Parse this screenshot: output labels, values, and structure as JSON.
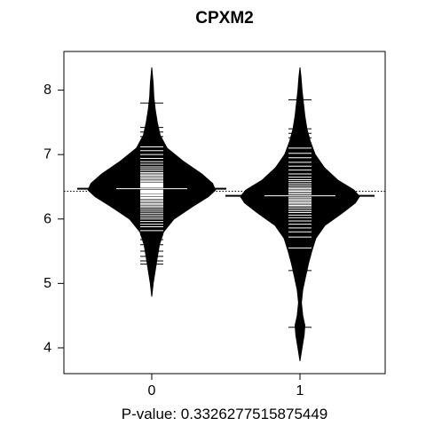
{
  "chart_data": {
    "type": "beanplot",
    "title": "CPXM2",
    "xlabel": "P-value: 0.3326277515875449",
    "ylabel": "",
    "categories": [
      "0",
      "1"
    ],
    "yticks": [
      4,
      5,
      6,
      7,
      8
    ],
    "ylim": [
      3.6,
      8.6
    ],
    "overall_mean": 6.43,
    "grid": false,
    "groups": [
      {
        "label": "0",
        "mean": 6.47,
        "ymin": 4.8,
        "ymax": 8.35,
        "density": [
          [
            4.8,
            0.0
          ],
          [
            5.0,
            0.02
          ],
          [
            5.2,
            0.05
          ],
          [
            5.4,
            0.08
          ],
          [
            5.6,
            0.11
          ],
          [
            5.8,
            0.17
          ],
          [
            6.0,
            0.32
          ],
          [
            6.2,
            0.6
          ],
          [
            6.35,
            0.82
          ],
          [
            6.45,
            0.92
          ],
          [
            6.55,
            0.88
          ],
          [
            6.7,
            0.72
          ],
          [
            6.9,
            0.45
          ],
          [
            7.1,
            0.22
          ],
          [
            7.3,
            0.12
          ],
          [
            7.5,
            0.08
          ],
          [
            7.7,
            0.05
          ],
          [
            7.9,
            0.03
          ],
          [
            8.1,
            0.02
          ],
          [
            8.35,
            0.0
          ]
        ],
        "observations": [
          5.3,
          5.35,
          5.42,
          5.5,
          5.6,
          5.68,
          5.75,
          5.82,
          5.88,
          5.92,
          5.96,
          6.0,
          6.03,
          6.06,
          6.09,
          6.12,
          6.15,
          6.18,
          6.2,
          6.22,
          6.24,
          6.26,
          6.28,
          6.3,
          6.32,
          6.33,
          6.34,
          6.36,
          6.37,
          6.38,
          6.4,
          6.41,
          6.42,
          6.43,
          6.44,
          6.45,
          6.46,
          6.47,
          6.48,
          6.49,
          6.5,
          6.51,
          6.52,
          6.53,
          6.54,
          6.55,
          6.56,
          6.58,
          6.6,
          6.62,
          6.64,
          6.66,
          6.68,
          6.7,
          6.72,
          6.75,
          6.78,
          6.81,
          6.85,
          6.89,
          6.94,
          7.0,
          7.06,
          7.12,
          7.2,
          7.28,
          7.35,
          7.42,
          7.8
        ]
      },
      {
        "label": "1",
        "mean": 6.36,
        "ymin": 3.8,
        "ymax": 8.35,
        "density": [
          [
            3.8,
            0.0
          ],
          [
            4.0,
            0.03
          ],
          [
            4.2,
            0.06
          ],
          [
            4.35,
            0.07
          ],
          [
            4.5,
            0.04
          ],
          [
            4.7,
            0.02
          ],
          [
            4.9,
            0.04
          ],
          [
            5.1,
            0.08
          ],
          [
            5.3,
            0.12
          ],
          [
            5.5,
            0.17
          ],
          [
            5.7,
            0.23
          ],
          [
            5.9,
            0.36
          ],
          [
            6.1,
            0.62
          ],
          [
            6.25,
            0.8
          ],
          [
            6.35,
            0.86
          ],
          [
            6.45,
            0.78
          ],
          [
            6.6,
            0.55
          ],
          [
            6.8,
            0.35
          ],
          [
            7.0,
            0.22
          ],
          [
            7.2,
            0.15
          ],
          [
            7.4,
            0.1
          ],
          [
            7.6,
            0.07
          ],
          [
            7.8,
            0.05
          ],
          [
            8.0,
            0.03
          ],
          [
            8.2,
            0.015
          ],
          [
            8.35,
            0.0
          ]
        ],
        "observations": [
          4.32,
          5.2,
          5.55,
          5.72,
          5.8,
          5.86,
          5.92,
          5.97,
          6.02,
          6.06,
          6.1,
          6.13,
          6.16,
          6.19,
          6.21,
          6.23,
          6.25,
          6.27,
          6.29,
          6.31,
          6.33,
          6.35,
          6.37,
          6.39,
          6.41,
          6.43,
          6.45,
          6.47,
          6.49,
          6.52,
          6.55,
          6.58,
          6.61,
          6.65,
          6.7,
          6.76,
          6.82,
          6.88,
          6.95,
          7.02,
          7.1,
          7.18,
          7.26,
          7.33,
          7.4,
          7.85
        ]
      }
    ]
  }
}
